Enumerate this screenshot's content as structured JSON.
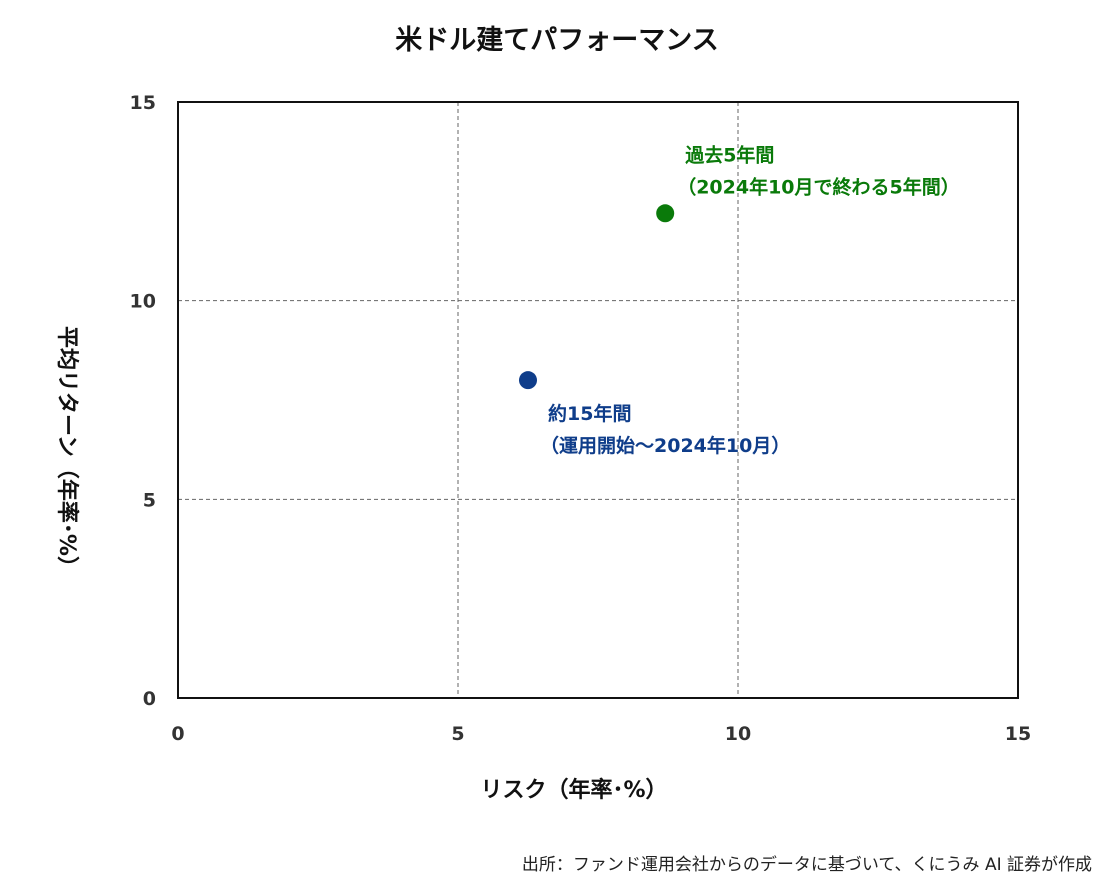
{
  "chart_data": {
    "type": "scatter",
    "title": "米ドル建てパフォーマンス",
    "xlabel": "リスク（年率･%）",
    "ylabel": "平均リターン（年率･%）",
    "xlim": [
      0,
      15
    ],
    "ylim": [
      0,
      15
    ],
    "xticks": [
      0,
      5,
      10,
      15
    ],
    "yticks": [
      0,
      5,
      10,
      15
    ],
    "grid": true,
    "points": [
      {
        "x": 8.7,
        "y": 12.2,
        "color": "#0a7a0a",
        "label_lines": [
          "過去5年間",
          "（2024年10月で終わる5年間）"
        ]
      },
      {
        "x": 6.25,
        "y": 8.0,
        "color": "#0f3d8a",
        "label_lines": [
          "約15年間",
          "（運用開始～2024年10月）"
        ]
      }
    ]
  },
  "source": "出所：ファンド運用会社からのデータに基づいて、くにうみ AI 証券が作成"
}
